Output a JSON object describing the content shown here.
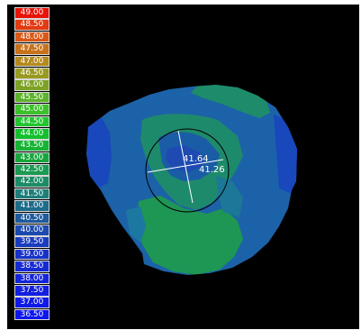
{
  "legend": {
    "items": [
      {
        "label": "49.00",
        "color": "#e8140a"
      },
      {
        "label": "48.50",
        "color": "#e23a12"
      },
      {
        "label": "48.00",
        "color": "#d95818"
      },
      {
        "label": "47.50",
        "color": "#c8721c"
      },
      {
        "label": "47.00",
        "color": "#b48a1e"
      },
      {
        "label": "46.50",
        "color": "#9a9a22"
      },
      {
        "label": "46.00",
        "color": "#7ea226"
      },
      {
        "label": "45.50",
        "color": "#5cb22a"
      },
      {
        "label": "45.00",
        "color": "#3cc02c"
      },
      {
        "label": "44.50",
        "color": "#22c62e"
      },
      {
        "label": "44.00",
        "color": "#14c02e"
      },
      {
        "label": "43.50",
        "color": "#16b434"
      },
      {
        "label": "43.00",
        "color": "#18a63c"
      },
      {
        "label": "42.50",
        "color": "#1a9a52"
      },
      {
        "label": "42.00",
        "color": "#1c8c66"
      },
      {
        "label": "41.50",
        "color": "#1e7e7a"
      },
      {
        "label": "41.00",
        "color": "#1e6c8a"
      },
      {
        "label": "40.50",
        "color": "#1e5a9c"
      },
      {
        "label": "40.00",
        "color": "#1c4aae"
      },
      {
        "label": "39.50",
        "color": "#1a3cbe"
      },
      {
        "label": "39.00",
        "color": "#1832c8"
      },
      {
        "label": "38.50",
        "color": "#162ad2"
      },
      {
        "label": "38.00",
        "color": "#1424da"
      },
      {
        "label": "37.50",
        "color": "#121fe0"
      },
      {
        "label": "37.00",
        "color": "#101ae6"
      },
      {
        "label": "36.50",
        "color": "#0e16ec"
      }
    ]
  },
  "map": {
    "reading_primary": "41.64",
    "reading_secondary": "41.26"
  }
}
